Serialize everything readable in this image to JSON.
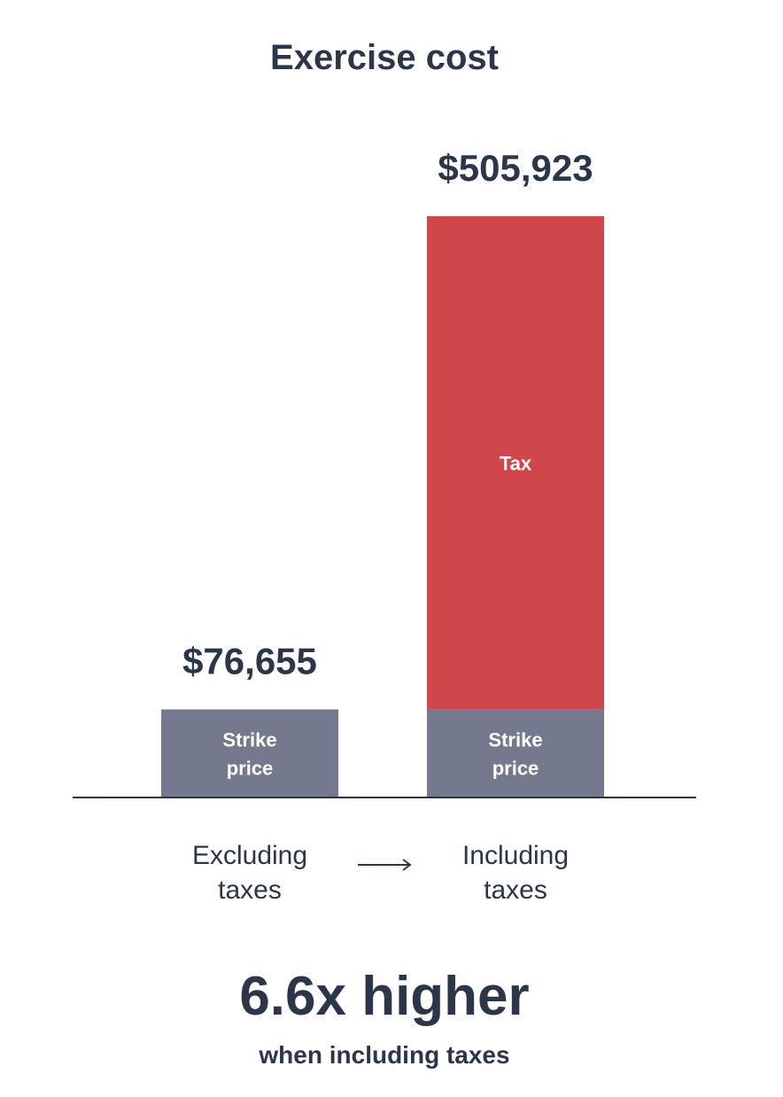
{
  "chart_data": {
    "type": "bar",
    "stacked": true,
    "title": "Exercise cost",
    "categories": [
      [
        "Excluding",
        "taxes"
      ],
      [
        "Including",
        "taxes"
      ]
    ],
    "totals": [
      "$76,655",
      "$505,923"
    ],
    "total_values": [
      76655,
      505923
    ],
    "series": [
      {
        "name": "Strike price",
        "label_lines": [
          "Strike",
          "price"
        ],
        "values": [
          76655,
          76655
        ],
        "color": "#75798d"
      },
      {
        "name": "Tax",
        "label_lines": [
          "Tax"
        ],
        "values": [
          0,
          429268
        ],
        "color": "#d0474b"
      }
    ],
    "ylim": [
      0,
      505923
    ],
    "grid": false,
    "legend": "none"
  },
  "summary": {
    "headline": "6.6x higher",
    "subheadline": "when including taxes"
  },
  "colors": {
    "text": "#2b3648",
    "strike": "#75798d",
    "tax": "#d0474b",
    "segment_text": "#ffffff"
  },
  "icons": {
    "comparison_arrow": "arrow-right-icon"
  }
}
